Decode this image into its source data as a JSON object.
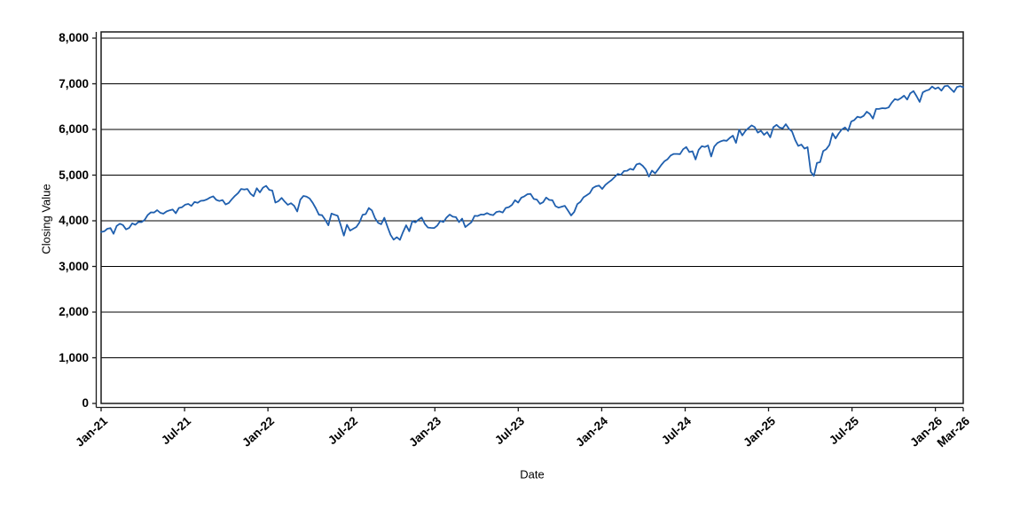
{
  "figure": {
    "background": "#ffffff",
    "text_color": "#000000",
    "grid_color": "#000000",
    "frame_color": "#1a1a1a",
    "line_color": "#1f5fae"
  },
  "chart_data": {
    "type": "line",
    "title": "",
    "xlabel": "Date",
    "ylabel": "Closing Value",
    "grid": "horizontal gridlines at every 1,000; plot framed on all sides; offset axis lines with outward ticks",
    "legend_position": "none",
    "x_range_months": [
      0,
      62
    ],
    "x_tick_labels": [
      "Jan-21",
      "Jul-21",
      "Jan-22",
      "Jul-22",
      "Jan-23",
      "Jul-23",
      "Jan-24",
      "Jul-24",
      "Jan-25",
      "Jul-25",
      "Jan-26",
      "Mar-26"
    ],
    "x_tick_months": [
      0,
      6,
      12,
      18,
      24,
      30,
      36,
      42,
      48,
      54,
      60,
      62
    ],
    "y_tick_labels": [
      "0",
      "1,000",
      "2,000",
      "3,000",
      "4,000",
      "5,000",
      "6,000",
      "7,000",
      "8,000"
    ],
    "y_tick_values": [
      0,
      1000,
      2000,
      3000,
      4000,
      5000,
      6000,
      7000,
      8000
    ],
    "ylim": [
      0,
      8136
    ],
    "series": [
      {
        "name": "Closing Value",
        "color": "#1f5fae",
        "sampling": "approx. weekly values, evenly spaced from Jan-2021 to Mar-2026",
        "values": [
          3756,
          3768,
          3825,
          3841,
          3714,
          3886,
          3935,
          3907,
          3811,
          3842,
          3943,
          3913,
          3975,
          3971,
          4020,
          4129,
          4185,
          4180,
          4233,
          4174,
          4156,
          4204,
          4230,
          4247,
          4166,
          4281,
          4298,
          4352,
          4369,
          4327,
          4412,
          4395,
          4437,
          4442,
          4468,
          4509,
          4535,
          4459,
          4433,
          4455,
          4357,
          4391,
          4471,
          4545,
          4605,
          4698,
          4683,
          4698,
          4595,
          4538,
          4712,
          4621,
          4726,
          4766,
          4677,
          4663,
          4398,
          4432,
          4501,
          4419,
          4349,
          4385,
          4329,
          4204,
          4463,
          4543,
          4530,
          4488,
          4393,
          4272,
          4132,
          4123,
          4024,
          3901,
          4158,
          4132,
          4109,
          3901,
          3675,
          3912,
          3785,
          3825,
          3863,
          3962,
          4130,
          4145,
          4280,
          4228,
          4058,
          3955,
          3924,
          4067,
          3873,
          3693,
          3586,
          3640,
          3583,
          3753,
          3901,
          3771,
          3993,
          3965,
          4026,
          4072,
          3934,
          3852,
          3845,
          3840,
          3895,
          3999,
          3973,
          4071,
          4136,
          4090,
          4079,
          3970,
          4046,
          3862,
          3917,
          3971,
          4109,
          4105,
          4138,
          4134,
          4169,
          4136,
          4124,
          4192,
          4205,
          4180,
          4282,
          4299,
          4348,
          4450,
          4399,
          4505,
          4536,
          4582,
          4589,
          4478,
          4464,
          4370,
          4406,
          4508,
          4457,
          4450,
          4320,
          4288,
          4309,
          4328,
          4224,
          4117,
          4194,
          4365,
          4415,
          4514,
          4559,
          4604,
          4719,
          4755,
          4770,
          4697,
          4784,
          4840,
          4891,
          4959,
          5027,
          5006,
          5089,
          5096,
          5137,
          5117,
          5234,
          5254,
          5204,
          5123,
          4967,
          5100,
          5036,
          5128,
          5223,
          5303,
          5347,
          5432,
          5464,
          5465,
          5460,
          5567,
          5615,
          5505,
          5522,
          5344,
          5554,
          5634,
          5617,
          5648,
          5408,
          5626,
          5703,
          5738,
          5762,
          5751,
          5815,
          5865,
          5705,
          5996,
          5870,
          5969,
          6032,
          6090,
          6051,
          5931,
          5971,
          5882,
          5942,
          5827,
          6049,
          6101,
          6041,
          6026,
          6115,
          6013,
          5955,
          5770,
          5639,
          5668,
          5581,
          5612,
          5074,
          4983,
          5268,
          5283,
          5526,
          5569,
          5660,
          5917,
          5803,
          5912,
          6000,
          6045,
          5968,
          6173,
          6205,
          6280,
          6260,
          6297,
          6389,
          6339,
          6238,
          6449,
          6450,
          6467,
          6460,
          6482,
          6584,
          6664,
          6644,
          6688,
          6740,
          6654,
          6792,
          6841,
          6728,
          6603,
          6812,
          6849,
          6870,
          6940,
          6890,
          6920,
          6850,
          6945,
          6960,
          6890,
          6820,
          6930,
          6950,
          6925
        ]
      }
    ]
  }
}
